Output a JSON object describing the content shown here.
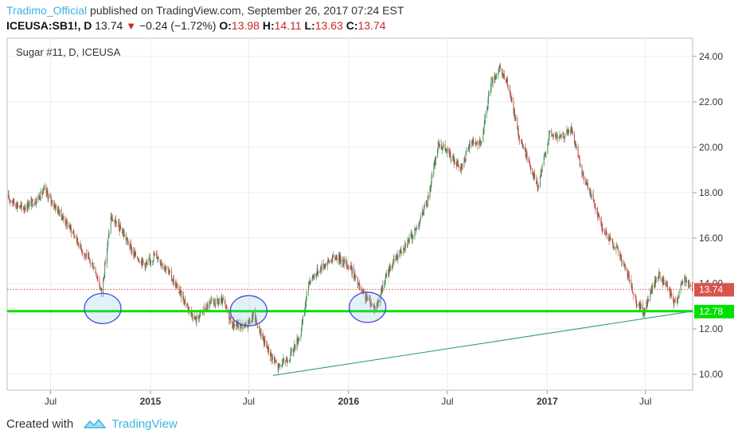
{
  "header": {
    "author": "Tradimo_Official",
    "published": "published on TradingView.com, September 26, 2017 07:24 EST",
    "symbol": "ICEUSA:SB1!, D",
    "last": "13.74",
    "change": "−0.24 (−1.72%)",
    "open_label": "O:",
    "open": "13.98",
    "high_label": "H:",
    "high": "14.11",
    "low_label": "L:",
    "low": "13.63",
    "close_label": "C:",
    "close": "13.74"
  },
  "footer": {
    "created_with": "Created with",
    "brand": "TradingView"
  },
  "colors": {
    "up": "#3a8a52",
    "down": "#c0463c",
    "support": "#00e000",
    "trend": "#3aa38a",
    "circle": "#4a4ad0",
    "price_badge": "#d9534f"
  },
  "chart_data": {
    "type": "candlestick",
    "title": "Sugar #11, D, ICEUSA",
    "ylim": [
      9.3,
      24.8
    ],
    "yticks": [
      "10.00",
      "12.00",
      "14.00",
      "16.00",
      "18.00",
      "20.00",
      "22.00",
      "24.00"
    ],
    "x_start": "2014-04-12",
    "x_end": "2017-09-26",
    "xticks": [
      {
        "label": "Jul",
        "date": "2014-07-01",
        "bold": false
      },
      {
        "label": "2015",
        "date": "2015-01-01",
        "bold": true
      },
      {
        "label": "Jul",
        "date": "2015-07-01",
        "bold": false
      },
      {
        "label": "2016",
        "date": "2016-01-01",
        "bold": true
      },
      {
        "label": "Jul",
        "date": "2016-07-01",
        "bold": false
      },
      {
        "label": "2017",
        "date": "2017-01-01",
        "bold": true
      },
      {
        "label": "Jul",
        "date": "2017-07-01",
        "bold": false
      }
    ],
    "price_path": [
      [
        "2014-04-12",
        17.8
      ],
      [
        "2014-05-10",
        17.3
      ],
      [
        "2014-06-05",
        17.7
      ],
      [
        "2014-06-20",
        18.1
      ],
      [
        "2014-07-15",
        17.2
      ],
      [
        "2014-08-10",
        16.3
      ],
      [
        "2014-09-01",
        15.3
      ],
      [
        "2014-09-20",
        14.7
      ],
      [
        "2014-10-03",
        13.6
      ],
      [
        "2014-10-20",
        16.9
      ],
      [
        "2014-11-10",
        16.3
      ],
      [
        "2014-12-01",
        15.3
      ],
      [
        "2014-12-25",
        14.8
      ],
      [
        "2015-01-10",
        15.3
      ],
      [
        "2015-02-01",
        14.6
      ],
      [
        "2015-03-01",
        13.4
      ],
      [
        "2015-03-25",
        12.4
      ],
      [
        "2015-04-20",
        13.1
      ],
      [
        "2015-05-15",
        13.2
      ],
      [
        "2015-06-01",
        12.2
      ],
      [
        "2015-06-25",
        12.1
      ],
      [
        "2015-07-10",
        12.6
      ],
      [
        "2015-08-01",
        11.3
      ],
      [
        "2015-08-24",
        10.3
      ],
      [
        "2015-09-15",
        10.8
      ],
      [
        "2015-10-05",
        11.8
      ],
      [
        "2015-10-20",
        14.1
      ],
      [
        "2015-11-15",
        14.8
      ],
      [
        "2015-12-10",
        15.2
      ],
      [
        "2016-01-05",
        14.7
      ],
      [
        "2016-01-25",
        13.6
      ],
      [
        "2016-02-20",
        12.9
      ],
      [
        "2016-03-15",
        14.6
      ],
      [
        "2016-04-10",
        15.6
      ],
      [
        "2016-05-01",
        16.2
      ],
      [
        "2016-05-25",
        17.6
      ],
      [
        "2016-06-15",
        20.2
      ],
      [
        "2016-07-01",
        19.8
      ],
      [
        "2016-07-25",
        19.0
      ],
      [
        "2016-08-15",
        20.3
      ],
      [
        "2016-09-01",
        20.1
      ],
      [
        "2016-09-20",
        22.9
      ],
      [
        "2016-10-05",
        23.4
      ],
      [
        "2016-10-20",
        22.8
      ],
      [
        "2016-11-10",
        20.5
      ],
      [
        "2016-12-01",
        19.2
      ],
      [
        "2016-12-15",
        18.2
      ],
      [
        "2017-01-05",
        20.6
      ],
      [
        "2017-01-25",
        20.4
      ],
      [
        "2017-02-15",
        20.8
      ],
      [
        "2017-03-05",
        18.9
      ],
      [
        "2017-03-25",
        17.8
      ],
      [
        "2017-04-15",
        16.3
      ],
      [
        "2017-05-10",
        15.5
      ],
      [
        "2017-05-30",
        14.3
      ],
      [
        "2017-06-15",
        13.2
      ],
      [
        "2017-06-28",
        12.7
      ],
      [
        "2017-07-10",
        13.6
      ],
      [
        "2017-07-25",
        14.4
      ],
      [
        "2017-08-10",
        13.8
      ],
      [
        "2017-08-25",
        13.1
      ],
      [
        "2017-09-10",
        14.3
      ],
      [
        "2017-09-26",
        13.74
      ]
    ],
    "support_level": 12.78,
    "current_price": 13.74,
    "price_badge": "13.74",
    "support_badge": "12.78",
    "trendline": [
      [
        "2015-08-15",
        9.95
      ],
      [
        "2017-09-26",
        12.78
      ]
    ],
    "highlight_circles": [
      {
        "date": "2014-10-05",
        "price": 12.9
      },
      {
        "date": "2015-07-01",
        "price": 12.8
      },
      {
        "date": "2016-02-05",
        "price": 12.95
      }
    ]
  }
}
